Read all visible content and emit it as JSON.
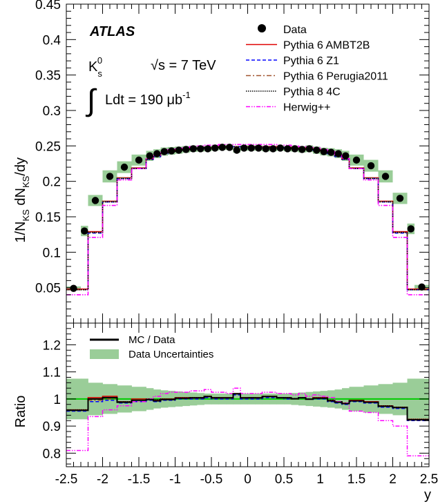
{
  "chart_data": [
    {
      "type": "scatter",
      "panel": "main",
      "ylabel_parts": {
        "a": "1/N",
        "b": "KS",
        "c": " dN",
        "d": "KS",
        "e": "/dy"
      },
      "xlim": [
        -2.5,
        2.5
      ],
      "ylim": [
        0,
        0.45
      ],
      "yticks": [
        0.05,
        0.1,
        0.15,
        0.2,
        0.25,
        0.3,
        0.35,
        0.4,
        0.45
      ],
      "ytick_labels": [
        "0.05",
        "0.1",
        "0.15",
        "0.2",
        "0.25",
        "0.3",
        "0.35",
        "0.4",
        "0.45"
      ],
      "grid": false,
      "legend_position": "top-right",
      "annotations": {
        "experiment": "ATLAS",
        "particle": "K",
        "particle_sub": "s",
        "particle_sup": "0",
        "energy": "√s = 7 TeV",
        "lumi_prefix": "Ldt = 190 μb",
        "lumi_exp": "-1"
      },
      "bin_edges": [
        -2.5,
        -2.3,
        -2.2,
        -2.0,
        -1.8,
        -1.6,
        -1.4,
        -1.3,
        -1.2,
        -1.1,
        -1.0,
        -0.9,
        -0.8,
        -0.7,
        -0.6,
        -0.5,
        -0.4,
        -0.3,
        -0.2,
        -0.1,
        0.0,
        0.1,
        0.2,
        0.3,
        0.4,
        0.5,
        0.6,
        0.7,
        0.8,
        0.9,
        1.0,
        1.1,
        1.2,
        1.3,
        1.4,
        1.6,
        1.8,
        2.0,
        2.2,
        2.3,
        2.5
      ],
      "band_halfwidth": 0.008,
      "series": [
        {
          "name": "Data",
          "style": "markers",
          "color": "#000000",
          "x": [
            -2.4,
            -2.25,
            -2.1,
            -1.9,
            -1.7,
            -1.5,
            -1.35,
            -1.25,
            -1.15,
            -1.05,
            -0.95,
            -0.85,
            -0.75,
            -0.65,
            -0.55,
            -0.45,
            -0.35,
            -0.25,
            -0.15,
            -0.05,
            0.05,
            0.15,
            0.25,
            0.35,
            0.45,
            0.55,
            0.65,
            0.75,
            0.85,
            0.95,
            1.05,
            1.15,
            1.25,
            1.35,
            1.5,
            1.7,
            1.9,
            2.1,
            2.25,
            2.4
          ],
          "values": [
            0.049,
            0.13,
            0.173,
            0.207,
            0.22,
            0.23,
            0.236,
            0.239,
            0.242,
            0.243,
            0.244,
            0.245,
            0.246,
            0.246,
            0.246,
            0.247,
            0.248,
            0.248,
            0.244,
            0.247,
            0.247,
            0.247,
            0.246,
            0.246,
            0.247,
            0.246,
            0.246,
            0.245,
            0.246,
            0.244,
            0.242,
            0.241,
            0.239,
            0.236,
            0.23,
            0.222,
            0.207,
            0.176,
            0.133,
            0.051
          ]
        },
        {
          "name": "Pythia 6 AMBT2B",
          "style": "step",
          "color": "#e00000",
          "dash": "",
          "values": [
            0.048,
            0.048,
            0.129,
            0.172,
            0.205,
            0.219,
            0.232,
            0.236,
            0.24,
            0.243,
            0.245,
            0.246,
            0.247,
            0.247,
            0.248,
            0.248,
            0.249,
            0.249,
            0.249,
            0.249,
            0.249,
            0.249,
            0.249,
            0.249,
            0.248,
            0.248,
            0.247,
            0.247,
            0.246,
            0.245,
            0.243,
            0.24,
            0.236,
            0.232,
            0.219,
            0.205,
            0.172,
            0.129,
            0.048,
            0.048
          ]
        },
        {
          "name": "Pythia 6 Z1",
          "style": "step",
          "color": "#0000ff",
          "dash": "5,3",
          "values": [
            0.047,
            0.047,
            0.127,
            0.171,
            0.204,
            0.218,
            0.231,
            0.235,
            0.239,
            0.242,
            0.244,
            0.245,
            0.246,
            0.247,
            0.247,
            0.248,
            0.248,
            0.248,
            0.249,
            0.249,
            0.249,
            0.249,
            0.248,
            0.248,
            0.248,
            0.247,
            0.247,
            0.246,
            0.245,
            0.244,
            0.242,
            0.239,
            0.235,
            0.231,
            0.218,
            0.204,
            0.171,
            0.127,
            0.047,
            0.047
          ]
        },
        {
          "name": "Pythia 6 Perugia2011",
          "style": "step",
          "color": "#a0522d",
          "dash": "7,3,2,3",
          "values": [
            0.047,
            0.047,
            0.128,
            0.172,
            0.205,
            0.219,
            0.232,
            0.236,
            0.24,
            0.243,
            0.244,
            0.245,
            0.246,
            0.247,
            0.247,
            0.248,
            0.248,
            0.248,
            0.249,
            0.249,
            0.249,
            0.249,
            0.248,
            0.248,
            0.248,
            0.247,
            0.247,
            0.246,
            0.245,
            0.244,
            0.243,
            0.24,
            0.236,
            0.232,
            0.219,
            0.205,
            0.172,
            0.128,
            0.047,
            0.047
          ]
        },
        {
          "name": "Pythia 8 4C",
          "style": "step",
          "color": "#000000",
          "dash": "1.5,1.5",
          "values": [
            0.047,
            0.047,
            0.128,
            0.171,
            0.204,
            0.218,
            0.231,
            0.236,
            0.24,
            0.242,
            0.244,
            0.245,
            0.246,
            0.247,
            0.248,
            0.248,
            0.248,
            0.249,
            0.249,
            0.249,
            0.249,
            0.249,
            0.249,
            0.248,
            0.248,
            0.248,
            0.247,
            0.246,
            0.245,
            0.244,
            0.242,
            0.24,
            0.236,
            0.231,
            0.218,
            0.204,
            0.171,
            0.128,
            0.047,
            0.047
          ]
        },
        {
          "name": "Herwig++",
          "style": "step",
          "color": "#ff00ff",
          "dash": "6,2,1.5,2,1.5,2",
          "values": [
            0.04,
            0.04,
            0.121,
            0.166,
            0.202,
            0.218,
            0.232,
            0.237,
            0.242,
            0.245,
            0.247,
            0.248,
            0.249,
            0.25,
            0.251,
            0.251,
            0.252,
            0.252,
            0.252,
            0.252,
            0.252,
            0.252,
            0.252,
            0.252,
            0.251,
            0.251,
            0.25,
            0.249,
            0.248,
            0.247,
            0.245,
            0.242,
            0.237,
            0.232,
            0.218,
            0.202,
            0.166,
            0.121,
            0.04,
            0.04
          ]
        }
      ]
    },
    {
      "type": "line",
      "panel": "ratio",
      "xlabel": "y",
      "ylabel": "Ratio",
      "xlim": [
        -2.5,
        2.5
      ],
      "ylim": [
        0.75,
        1.28
      ],
      "xticks": [
        -2.5,
        -2,
        -1.5,
        -1,
        -0.5,
        0,
        0.5,
        1,
        1.5,
        2,
        2.5
      ],
      "xtick_labels": [
        "-2.5",
        "-2",
        "-1.5",
        "-1",
        "-0.5",
        "0",
        "0.5",
        "1",
        "1.5",
        "2",
        "2.5"
      ],
      "yticks": [
        0.8,
        0.9,
        1,
        1.1,
        1.2
      ],
      "ytick_labels": [
        "0.8",
        "0.9",
        "1",
        "1.1",
        "1.2"
      ],
      "reference_line": 1,
      "legend_position": "top-left",
      "legend": [
        {
          "label": "MC / Data",
          "kind": "line",
          "color": "#000000"
        },
        {
          "label": "Data Uncertainties",
          "kind": "band",
          "color": "#9acd98"
        }
      ],
      "uncertainty_band": {
        "color": "#9acd98",
        "values": [
          0.075,
          0.075,
          0.06,
          0.055,
          0.05,
          0.045,
          0.04,
          0.035,
          0.032,
          0.03,
          0.028,
          0.026,
          0.024,
          0.022,
          0.02,
          0.02,
          0.02,
          0.02,
          0.02,
          0.02,
          0.02,
          0.02,
          0.02,
          0.02,
          0.02,
          0.02,
          0.022,
          0.024,
          0.026,
          0.028,
          0.03,
          0.032,
          0.035,
          0.04,
          0.045,
          0.05,
          0.055,
          0.06,
          0.075,
          0.075
        ]
      },
      "series": [
        {
          "name": "Pythia 6 AMBT2B",
          "color": "#e00000",
          "dash": "",
          "values": [
            0.96,
            0.96,
            1.005,
            1.01,
            0.99,
            1.0,
            1.0,
            0.995,
            1.0,
            1.0,
            1.005,
            1.005,
            1.005,
            1.005,
            1.01,
            1.005,
            1.005,
            1.005,
            1.02,
            1.005,
            1.005,
            1.005,
            1.01,
            1.01,
            1.005,
            1.005,
            1.0,
            1.005,
            1.0,
            1.005,
            1.005,
            0.995,
            0.99,
            0.985,
            0.995,
            0.99,
            0.975,
            0.97,
            0.925,
            0.925
          ]
        },
        {
          "name": "Pythia 6 Z1",
          "color": "#0000ff",
          "dash": "5,3",
          "values": [
            0.955,
            0.955,
            0.99,
            0.995,
            0.985,
            0.99,
            0.995,
            0.99,
            0.995,
            0.995,
            1.0,
            1.0,
            1.0,
            1.0,
            1.005,
            1.0,
            1.0,
            1.0,
            1.015,
            1.0,
            1.0,
            1.0,
            1.005,
            1.005,
            1.005,
            1.0,
            1.0,
            1.005,
            1.0,
            1.0,
            1.0,
            0.99,
            0.985,
            0.98,
            0.99,
            0.985,
            0.97,
            0.965,
            0.92,
            0.92
          ]
        },
        {
          "name": "Pythia 6 Perugia2011",
          "color": "#a0522d",
          "dash": "7,3,2,3",
          "values": [
            0.958,
            0.958,
            0.995,
            1.0,
            0.99,
            0.995,
            0.998,
            0.993,
            0.998,
            0.998,
            1.002,
            1.002,
            1.003,
            1.003,
            1.008,
            1.003,
            1.003,
            1.003,
            1.018,
            1.003,
            1.003,
            1.003,
            1.008,
            1.008,
            1.004,
            1.003,
            1.001,
            1.004,
            1.0,
            1.003,
            1.003,
            0.993,
            0.988,
            0.983,
            0.993,
            0.988,
            0.973,
            0.968,
            0.922,
            0.922
          ]
        },
        {
          "name": "Pythia 8 4C",
          "color": "#000000",
          "dash": "1.5,1.5",
          "values": [
            0.96,
            0.96,
            1.0,
            1.005,
            0.99,
            0.995,
            1.0,
            0.998,
            1.0,
            1.0,
            1.004,
            1.004,
            1.005,
            1.005,
            1.01,
            1.005,
            1.004,
            1.004,
            1.02,
            1.004,
            1.005,
            1.004,
            1.01,
            1.01,
            1.005,
            1.005,
            1.002,
            1.005,
            1.0,
            1.004,
            1.004,
            0.995,
            0.99,
            0.985,
            0.992,
            0.988,
            0.975,
            0.97,
            0.925,
            0.925
          ]
        },
        {
          "name": "Herwig++",
          "color": "#ff00ff",
          "dash": "6,2,1.5,2,1.5,2",
          "values": [
            0.81,
            0.81,
            0.935,
            0.96,
            0.975,
            0.99,
            1.0,
            1.01,
            1.02,
            1.025,
            1.025,
            1.025,
            1.03,
            1.03,
            1.035,
            1.025,
            1.025,
            1.02,
            1.04,
            1.02,
            1.02,
            1.02,
            1.025,
            1.025,
            1.02,
            1.02,
            1.015,
            1.02,
            1.01,
            1.015,
            1.01,
            1.005,
            0.99,
            0.985,
            0.955,
            0.95,
            0.92,
            0.9,
            0.79,
            0.79
          ]
        },
        {
          "name": "MC / Data",
          "color": "#000000",
          "dash": "",
          "values": [
            0.958,
            0.958,
            1.0,
            1.005,
            0.988,
            0.995,
            0.998,
            0.993,
            0.998,
            0.998,
            1.003,
            1.003,
            1.004,
            1.004,
            1.009,
            1.004,
            1.004,
            1.004,
            1.019,
            1.004,
            1.004,
            1.004,
            1.009,
            1.009,
            1.004,
            1.004,
            1.001,
            1.004,
            0.999,
            1.003,
            1.003,
            0.993,
            0.988,
            0.983,
            0.993,
            0.988,
            0.973,
            0.968,
            0.923,
            0.923
          ]
        }
      ]
    }
  ]
}
